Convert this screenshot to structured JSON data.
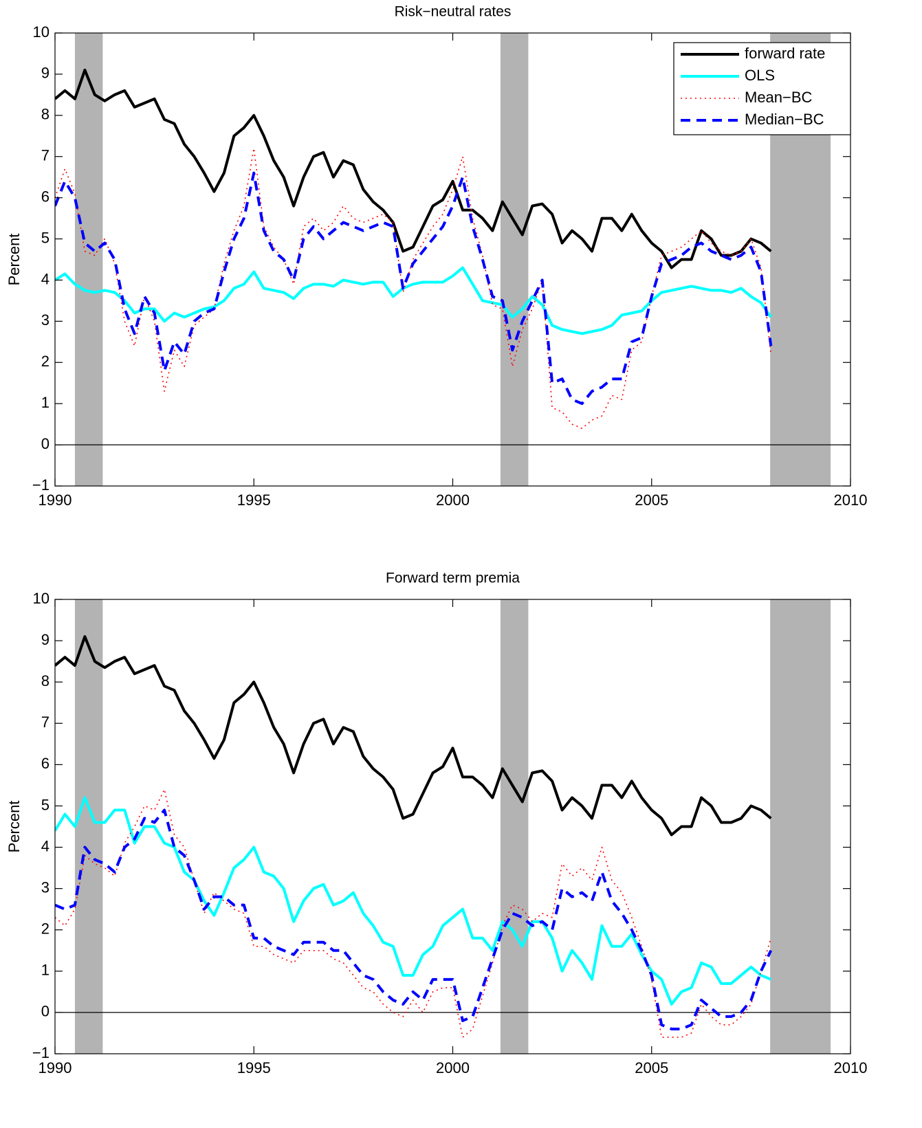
{
  "chart_data": [
    {
      "type": "line",
      "title": "Risk−neutral rates",
      "ylabel": "Percent",
      "xlim": [
        1990,
        2010
      ],
      "xticks": [
        1990,
        1995,
        2000,
        2005,
        2010
      ],
      "ylim": [
        -1,
        10
      ],
      "yticks": [
        {
          "value": -1,
          "label": "−1"
        },
        0,
        1,
        2,
        3,
        4,
        5,
        6,
        7,
        8,
        9,
        10
      ],
      "legend": "upper right",
      "hline": 0,
      "shaded": [
        [
          1990.5,
          1991.2
        ],
        [
          2001.2,
          2001.9
        ],
        [
          2007.98,
          2009.5
        ]
      ],
      "shade_color": "#b3b3b3",
      "x": [
        1990,
        1990.25,
        1990.5,
        1990.75,
        1991,
        1991.25,
        1991.5,
        1991.75,
        1992,
        1992.25,
        1992.5,
        1992.75,
        1993,
        1993.25,
        1993.5,
        1993.75,
        1994,
        1994.25,
        1994.5,
        1994.75,
        1995,
        1995.25,
        1995.5,
        1995.75,
        1996,
        1996.25,
        1996.5,
        1996.75,
        1997,
        1997.25,
        1997.5,
        1997.75,
        1998,
        1998.25,
        1998.5,
        1998.75,
        1999,
        1999.25,
        1999.5,
        1999.75,
        2000,
        2000.25,
        2000.5,
        2000.75,
        2001,
        2001.25,
        2001.5,
        2001.75,
        2002,
        2002.25,
        2002.5,
        2002.75,
        2003,
        2003.25,
        2003.5,
        2003.75,
        2004,
        2004.25,
        2004.5,
        2004.75,
        2005,
        2005.25,
        2005.5,
        2005.75,
        2006,
        2006.25,
        2006.5,
        2006.75,
        2007,
        2007.25,
        2007.5,
        2007.75,
        2008
      ],
      "series": [
        {
          "name": "forward rate",
          "color": "#000000",
          "style": "solid",
          "width": 4,
          "values": [
            8.4,
            8.6,
            8.4,
            9.1,
            8.5,
            8.35,
            8.5,
            8.6,
            8.2,
            8.3,
            8.4,
            7.9,
            7.8,
            7.3,
            7.0,
            6.6,
            6.15,
            6.6,
            7.5,
            7.7,
            8.0,
            7.5,
            6.9,
            6.5,
            5.8,
            6.5,
            7.0,
            7.1,
            6.5,
            6.9,
            6.8,
            6.2,
            5.9,
            5.7,
            5.4,
            4.7,
            4.8,
            5.3,
            5.8,
            5.95,
            6.4,
            5.7,
            5.7,
            5.5,
            5.2,
            5.9,
            5.5,
            5.1,
            5.8,
            5.85,
            5.6,
            4.9,
            5.2,
            5.0,
            4.7,
            5.5,
            5.5,
            5.2,
            5.6,
            5.2,
            4.9,
            4.7,
            4.3,
            4.5,
            4.5,
            5.2,
            5.0,
            4.6,
            4.6,
            4.7,
            5.0,
            4.9,
            4.7
          ]
        },
        {
          "name": "OLS",
          "color": "#00ffff",
          "style": "solid",
          "width": 4,
          "values": [
            4.0,
            4.15,
            3.9,
            3.75,
            3.7,
            3.75,
            3.7,
            3.5,
            3.2,
            3.3,
            3.3,
            3.0,
            3.2,
            3.1,
            3.2,
            3.3,
            3.35,
            3.5,
            3.8,
            3.9,
            4.2,
            3.8,
            3.75,
            3.7,
            3.55,
            3.8,
            3.9,
            3.9,
            3.85,
            4.0,
            3.95,
            3.9,
            3.95,
            3.95,
            3.6,
            3.8,
            3.9,
            3.95,
            3.95,
            3.95,
            4.1,
            4.3,
            3.9,
            3.5,
            3.45,
            3.4,
            3.1,
            3.3,
            3.6,
            3.4,
            2.9,
            2.8,
            2.75,
            2.7,
            2.75,
            2.8,
            2.9,
            3.15,
            3.2,
            3.25,
            3.5,
            3.7,
            3.75,
            3.8,
            3.85,
            3.8,
            3.75,
            3.75,
            3.7,
            3.8,
            3.6,
            3.45,
            3.1
          ]
        },
        {
          "name": "Mean−BC",
          "color": "#ff0000",
          "style": "dotted",
          "width": 1.6,
          "values": [
            6.0,
            6.7,
            6.1,
            4.7,
            4.6,
            5.0,
            4.4,
            3.0,
            2.4,
            3.6,
            3.0,
            1.3,
            2.3,
            1.9,
            2.9,
            3.1,
            3.3,
            4.4,
            5.2,
            5.8,
            7.2,
            5.3,
            4.8,
            4.5,
            3.9,
            5.3,
            5.5,
            5.2,
            5.4,
            5.8,
            5.5,
            5.4,
            5.5,
            5.6,
            5.4,
            3.7,
            4.5,
            4.9,
            5.3,
            5.6,
            6.2,
            7.0,
            5.5,
            4.6,
            3.4,
            3.3,
            1.9,
            2.8,
            3.3,
            4.0,
            0.9,
            0.8,
            0.5,
            0.4,
            0.6,
            0.7,
            1.2,
            1.1,
            2.3,
            2.5,
            3.6,
            4.6,
            4.7,
            4.8,
            5.0,
            5.2,
            4.9,
            4.7,
            4.6,
            4.7,
            5.0,
            4.3,
            2.2
          ]
        },
        {
          "name": "Median−BC",
          "color": "#0000ff",
          "style": "dashed",
          "width": 4,
          "values": [
            5.8,
            6.4,
            6.0,
            4.9,
            4.7,
            4.9,
            4.5,
            3.3,
            2.7,
            3.6,
            3.2,
            1.8,
            2.5,
            2.2,
            3.0,
            3.2,
            3.3,
            4.2,
            5.0,
            5.5,
            6.6,
            5.2,
            4.7,
            4.5,
            4.0,
            5.0,
            5.3,
            5.0,
            5.2,
            5.4,
            5.3,
            5.2,
            5.3,
            5.4,
            5.3,
            3.8,
            4.4,
            4.7,
            5.0,
            5.3,
            5.8,
            6.5,
            5.3,
            4.5,
            3.6,
            3.5,
            2.3,
            3.0,
            3.5,
            4.0,
            1.5,
            1.6,
            1.1,
            1.0,
            1.3,
            1.4,
            1.6,
            1.6,
            2.5,
            2.6,
            3.6,
            4.4,
            4.5,
            4.6,
            4.8,
            4.9,
            4.7,
            4.6,
            4.5,
            4.6,
            4.8,
            4.2,
            2.4
          ]
        }
      ]
    },
    {
      "type": "line",
      "title": "Forward term premia",
      "ylabel": "Percent",
      "xlim": [
        1990,
        2010
      ],
      "xticks": [
        1990,
        1995,
        2000,
        2005,
        2010
      ],
      "ylim": [
        -1,
        10
      ],
      "yticks": [
        {
          "value": -1,
          "label": "−1"
        },
        0,
        1,
        2,
        3,
        4,
        5,
        6,
        7,
        8,
        9,
        10
      ],
      "hline": 0,
      "shaded": [
        [
          1990.5,
          1991.2
        ],
        [
          2001.2,
          2001.9
        ],
        [
          2007.98,
          2009.5
        ]
      ],
      "shade_color": "#b3b3b3",
      "x": [
        1990,
        1990.25,
        1990.5,
        1990.75,
        1991,
        1991.25,
        1991.5,
        1991.75,
        1992,
        1992.25,
        1992.5,
        1992.75,
        1993,
        1993.25,
        1993.5,
        1993.75,
        1994,
        1994.25,
        1994.5,
        1994.75,
        1995,
        1995.25,
        1995.5,
        1995.75,
        1996,
        1996.25,
        1996.5,
        1996.75,
        1997,
        1997.25,
        1997.5,
        1997.75,
        1998,
        1998.25,
        1998.5,
        1998.75,
        1999,
        1999.25,
        1999.5,
        1999.75,
        2000,
        2000.25,
        2000.5,
        2000.75,
        2001,
        2001.25,
        2001.5,
        2001.75,
        2002,
        2002.25,
        2002.5,
        2002.75,
        2003,
        2003.25,
        2003.5,
        2003.75,
        2004,
        2004.25,
        2004.5,
        2004.75,
        2005,
        2005.25,
        2005.5,
        2005.75,
        2006,
        2006.25,
        2006.5,
        2006.75,
        2007,
        2007.25,
        2007.5,
        2007.75,
        2008
      ],
      "series": [
        {
          "color": "#000000",
          "style": "solid",
          "width": 4,
          "values": [
            8.4,
            8.6,
            8.4,
            9.1,
            8.5,
            8.35,
            8.5,
            8.6,
            8.2,
            8.3,
            8.4,
            7.9,
            7.8,
            7.3,
            7.0,
            6.6,
            6.15,
            6.6,
            7.5,
            7.7,
            8.0,
            7.5,
            6.9,
            6.5,
            5.8,
            6.5,
            7.0,
            7.1,
            6.5,
            6.9,
            6.8,
            6.2,
            5.9,
            5.7,
            5.4,
            4.7,
            4.8,
            5.3,
            5.8,
            5.95,
            6.4,
            5.7,
            5.7,
            5.5,
            5.2,
            5.9,
            5.5,
            5.1,
            5.8,
            5.85,
            5.6,
            4.9,
            5.2,
            5.0,
            4.7,
            5.5,
            5.5,
            5.2,
            5.6,
            5.2,
            4.9,
            4.7,
            4.3,
            4.5,
            4.5,
            5.2,
            5.0,
            4.6,
            4.6,
            4.7,
            5.0,
            4.9,
            4.7
          ]
        },
        {
          "color": "#00ffff",
          "style": "solid",
          "width": 4,
          "values": [
            4.4,
            4.8,
            4.5,
            5.2,
            4.6,
            4.6,
            4.9,
            4.9,
            4.1,
            4.5,
            4.5,
            4.1,
            4.0,
            3.4,
            3.2,
            2.7,
            2.35,
            2.9,
            3.5,
            3.7,
            4.0,
            3.4,
            3.3,
            3.0,
            2.2,
            2.7,
            3.0,
            3.1,
            2.6,
            2.7,
            2.9,
            2.4,
            2.1,
            1.7,
            1.6,
            0.9,
            0.9,
            1.4,
            1.6,
            2.1,
            2.3,
            2.5,
            1.8,
            1.8,
            1.5,
            2.2,
            2.0,
            1.6,
            2.2,
            2.2,
            1.8,
            1.0,
            1.5,
            1.2,
            0.8,
            2.1,
            1.6,
            1.6,
            1.9,
            1.4,
            1.0,
            0.8,
            0.2,
            0.5,
            0.6,
            1.2,
            1.1,
            0.7,
            0.7,
            0.9,
            1.1,
            0.9,
            0.8
          ]
        },
        {
          "color": "#ff0000",
          "style": "dotted",
          "width": 1.6,
          "values": [
            2.3,
            2.1,
            2.5,
            3.8,
            3.6,
            3.5,
            3.3,
            4.1,
            4.5,
            5.0,
            4.9,
            5.4,
            4.3,
            4.0,
            3.2,
            2.4,
            2.9,
            2.7,
            2.5,
            2.4,
            1.6,
            1.6,
            1.4,
            1.3,
            1.2,
            1.5,
            1.5,
            1.5,
            1.3,
            1.2,
            0.9,
            0.6,
            0.5,
            0.2,
            0.0,
            -0.1,
            0.3,
            0.0,
            0.5,
            0.6,
            0.6,
            -0.6,
            -0.4,
            0.4,
            1.2,
            2.1,
            2.6,
            2.5,
            2.2,
            2.4,
            2.3,
            3.6,
            3.3,
            3.5,
            3.2,
            4.0,
            3.2,
            2.9,
            2.3,
            1.6,
            0.8,
            -0.6,
            -0.6,
            -0.6,
            -0.5,
            0.2,
            -0.1,
            -0.3,
            -0.3,
            -0.1,
            0.2,
            1.0,
            1.8
          ]
        },
        {
          "color": "#0000ff",
          "style": "dashed",
          "width": 4,
          "values": [
            2.6,
            2.5,
            2.6,
            4.0,
            3.7,
            3.6,
            3.4,
            4.0,
            4.2,
            4.7,
            4.6,
            4.9,
            4.0,
            3.8,
            3.2,
            2.5,
            2.8,
            2.8,
            2.6,
            2.6,
            1.8,
            1.8,
            1.6,
            1.5,
            1.4,
            1.7,
            1.7,
            1.7,
            1.5,
            1.5,
            1.2,
            0.9,
            0.8,
            0.5,
            0.3,
            0.2,
            0.5,
            0.3,
            0.8,
            0.8,
            0.8,
            -0.2,
            -0.1,
            0.6,
            1.3,
            2.0,
            2.4,
            2.3,
            2.1,
            2.2,
            2.0,
            3.0,
            2.8,
            2.9,
            2.7,
            3.4,
            2.7,
            2.4,
            2.0,
            1.5,
            0.9,
            -0.3,
            -0.4,
            -0.4,
            -0.3,
            0.3,
            0.1,
            -0.1,
            -0.1,
            0.0,
            0.3,
            1.0,
            1.5
          ]
        }
      ]
    }
  ]
}
